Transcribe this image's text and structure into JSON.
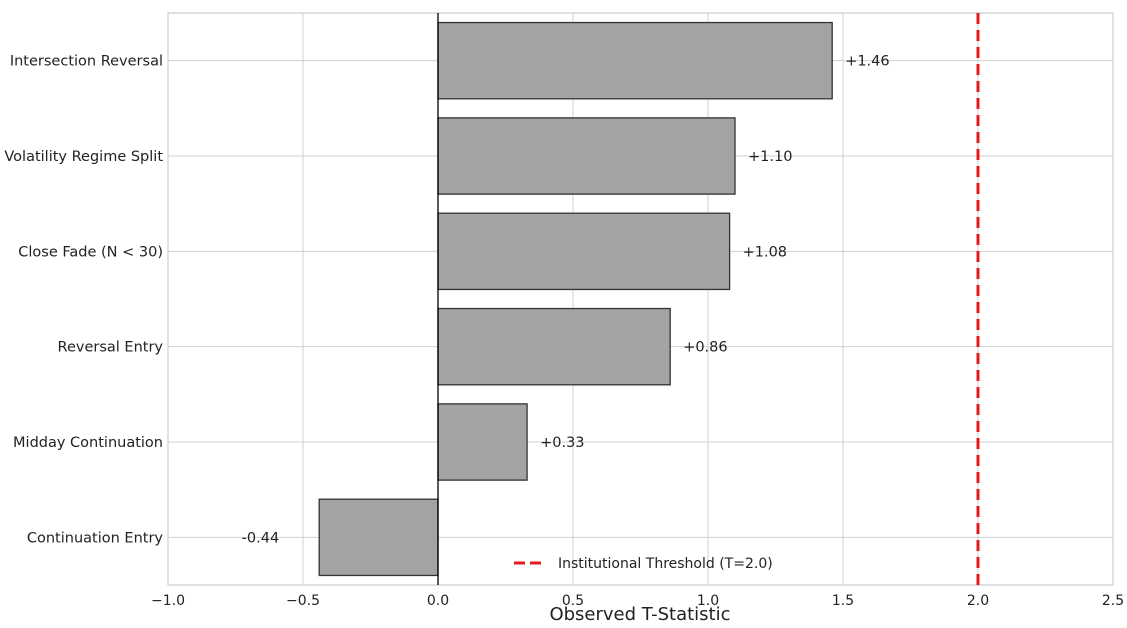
{
  "chart_data": {
    "type": "bar",
    "orientation": "horizontal",
    "title": "",
    "xlabel": "Observed T-Statistic",
    "ylabel": "",
    "xlim": [
      -1.0,
      2.5
    ],
    "xticks": [
      -1.0,
      -0.5,
      0.0,
      0.5,
      1.0,
      1.5,
      2.0,
      2.5
    ],
    "xtick_labels": [
      "−1.0",
      "−0.5",
      "0.0",
      "0.5",
      "1.0",
      "1.5",
      "2.0",
      "2.5"
    ],
    "grid": true,
    "categories": [
      "Intersection Reversal",
      "Volatility Regime Split",
      "Close Fade (N < 30)",
      "Reversal Entry",
      "Midday Continuation",
      "Continuation Entry"
    ],
    "values": [
      1.46,
      1.1,
      1.08,
      0.86,
      0.33,
      -0.44
    ],
    "data_labels": [
      "+1.46",
      "+1.10",
      "+1.08",
      "+0.86",
      "+0.33",
      "-0.44"
    ],
    "bar_color": "#a3a3a3",
    "bar_edge_color": "#333333",
    "threshold": {
      "value": 2.0,
      "label": "Institutional Threshold (T=2.0)",
      "color": "#e31a1c",
      "style": "dashed"
    },
    "legend_position": "lower-center"
  }
}
